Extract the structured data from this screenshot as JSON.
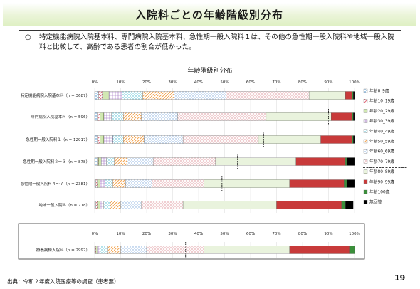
{
  "page_title": "入院料ごとの年齢階級別分布",
  "summary": {
    "bullet": "○",
    "text": "特定機能病院入院基本料、専門病院入院基本料、急性期一般入院料１は、その他の急性期一般入院料や地域一般入院料と比較して、高齢である患者の割合が低かった。"
  },
  "footer": {
    "source": "出典：令和２年度入院医療等の調査（患者票）",
    "page_number": "19"
  },
  "colors": {
    "age_0_9": "#2e7fc4",
    "age_10_19": "#e06a7a",
    "age_20_29": "#8dc63f",
    "age_30_39": "#9e6fc0",
    "age_40_49": "#42b8d0",
    "age_50_59": "#f4a552",
    "age_60_69": "#7ea9dc",
    "age_70_79": "#e8b4b8",
    "age_80_89": "#c5e0a5",
    "age_90_99": "#c83a3a",
    "age_100": "#3a8f3a",
    "unknown": "#000000",
    "marker": "#000000"
  },
  "chart_data": [
    {
      "type": "bar",
      "orientation": "horizontal",
      "stacked": true,
      "title": "年齢階級別分布",
      "x_ticks": [
        "0%",
        "10%",
        "20%",
        "30%",
        "40%",
        "50%",
        "60%",
        "70%",
        "80%",
        "90%",
        "100%"
      ],
      "xlim": [
        0,
        100
      ],
      "legend_position": "right",
      "categories": [
        "特定機能病院入院基本料（n = 3687）",
        "専門病院入院基本料（n = 596）",
        "急性期一般入院料１（n = 12917）",
        "急性期一般入院料２～３（n = 878）",
        "急性期一般入院料４～７（n = 2381）",
        "地域一般入院料（n = 718）"
      ],
      "series": [
        {
          "name": "年齢0_9歳",
          "values": [
            1.5,
            1.0,
            1.0,
            1.0,
            0.5,
            0.5
          ]
        },
        {
          "name": "年齢10_19歳",
          "values": [
            1.5,
            1.0,
            1.0,
            0.5,
            0.5,
            0.5
          ]
        },
        {
          "name": "年齢20_29歳",
          "values": [
            2.5,
            1.5,
            1.5,
            1.0,
            1.0,
            1.0
          ]
        },
        {
          "name": "年齢30_39歳",
          "values": [
            5.0,
            3.0,
            3.5,
            2.0,
            2.0,
            1.5
          ]
        },
        {
          "name": "年齢40_49歳",
          "values": [
            8.0,
            4.5,
            4.0,
            3.0,
            3.0,
            2.5
          ]
        },
        {
          "name": "年齢50_59歳",
          "values": [
            12.0,
            7.0,
            8.0,
            5.0,
            5.0,
            4.0
          ]
        },
        {
          "name": "年齢60_69歳",
          "values": [
            20.0,
            14.0,
            15.0,
            10.0,
            10.0,
            8.0
          ]
        },
        {
          "name": "年齢70_79歳",
          "values": [
            32.0,
            34.0,
            29.0,
            24.0,
            20.0,
            16.0
          ]
        },
        {
          "name": "年齢80_89歳",
          "values": [
            14.0,
            25.0,
            24.0,
            31.0,
            33.0,
            36.0
          ]
        },
        {
          "name": "年齢90_99歳",
          "values": [
            2.5,
            8.0,
            12.0,
            19.0,
            21.0,
            25.0
          ]
        },
        {
          "name": "年齢100歳",
          "values": [
            0.5,
            0.5,
            0.5,
            0.5,
            1.0,
            1.5
          ]
        },
        {
          "name": "無回答",
          "values": [
            0.5,
            0.5,
            0.5,
            3.0,
            3.0,
            3.0
          ]
        }
      ],
      "markers": [
        84,
        90,
        65,
        55,
        49,
        44
      ]
    },
    {
      "type": "bar",
      "orientation": "horizontal",
      "stacked": true,
      "x_ticks": [
        "0%",
        "10%",
        "20%",
        "30%",
        "40%",
        "50%",
        "60%",
        "70%",
        "80%",
        "90%",
        "100%"
      ],
      "xlim": [
        0,
        100
      ],
      "categories": [
        "療養病棟入院料（n = 2992）"
      ],
      "series": [
        {
          "name": "年齢0_9歳",
          "values": [
            0.0
          ]
        },
        {
          "name": "年齢10_19歳",
          "values": [
            0.5
          ]
        },
        {
          "name": "年齢20_29歳",
          "values": [
            0.5
          ]
        },
        {
          "name": "年齢30_39歳",
          "values": [
            1.0
          ]
        },
        {
          "name": "年齢40_49歳",
          "values": [
            3.0
          ]
        },
        {
          "name": "年齢50_59歳",
          "values": [
            5.0
          ]
        },
        {
          "name": "年齢60_69歳",
          "values": [
            10.0
          ]
        },
        {
          "name": "年齢70_79歳",
          "values": [
            22.0
          ]
        },
        {
          "name": "年齢80_89歳",
          "values": [
            33.0
          ]
        },
        {
          "name": "年齢90_99歳",
          "values": [
            23.0
          ]
        },
        {
          "name": "年齢100歳",
          "values": [
            2.0
          ]
        },
        {
          "name": "無回答",
          "values": [
            0.0
          ]
        }
      ],
      "markers": [
        35
      ]
    }
  ]
}
